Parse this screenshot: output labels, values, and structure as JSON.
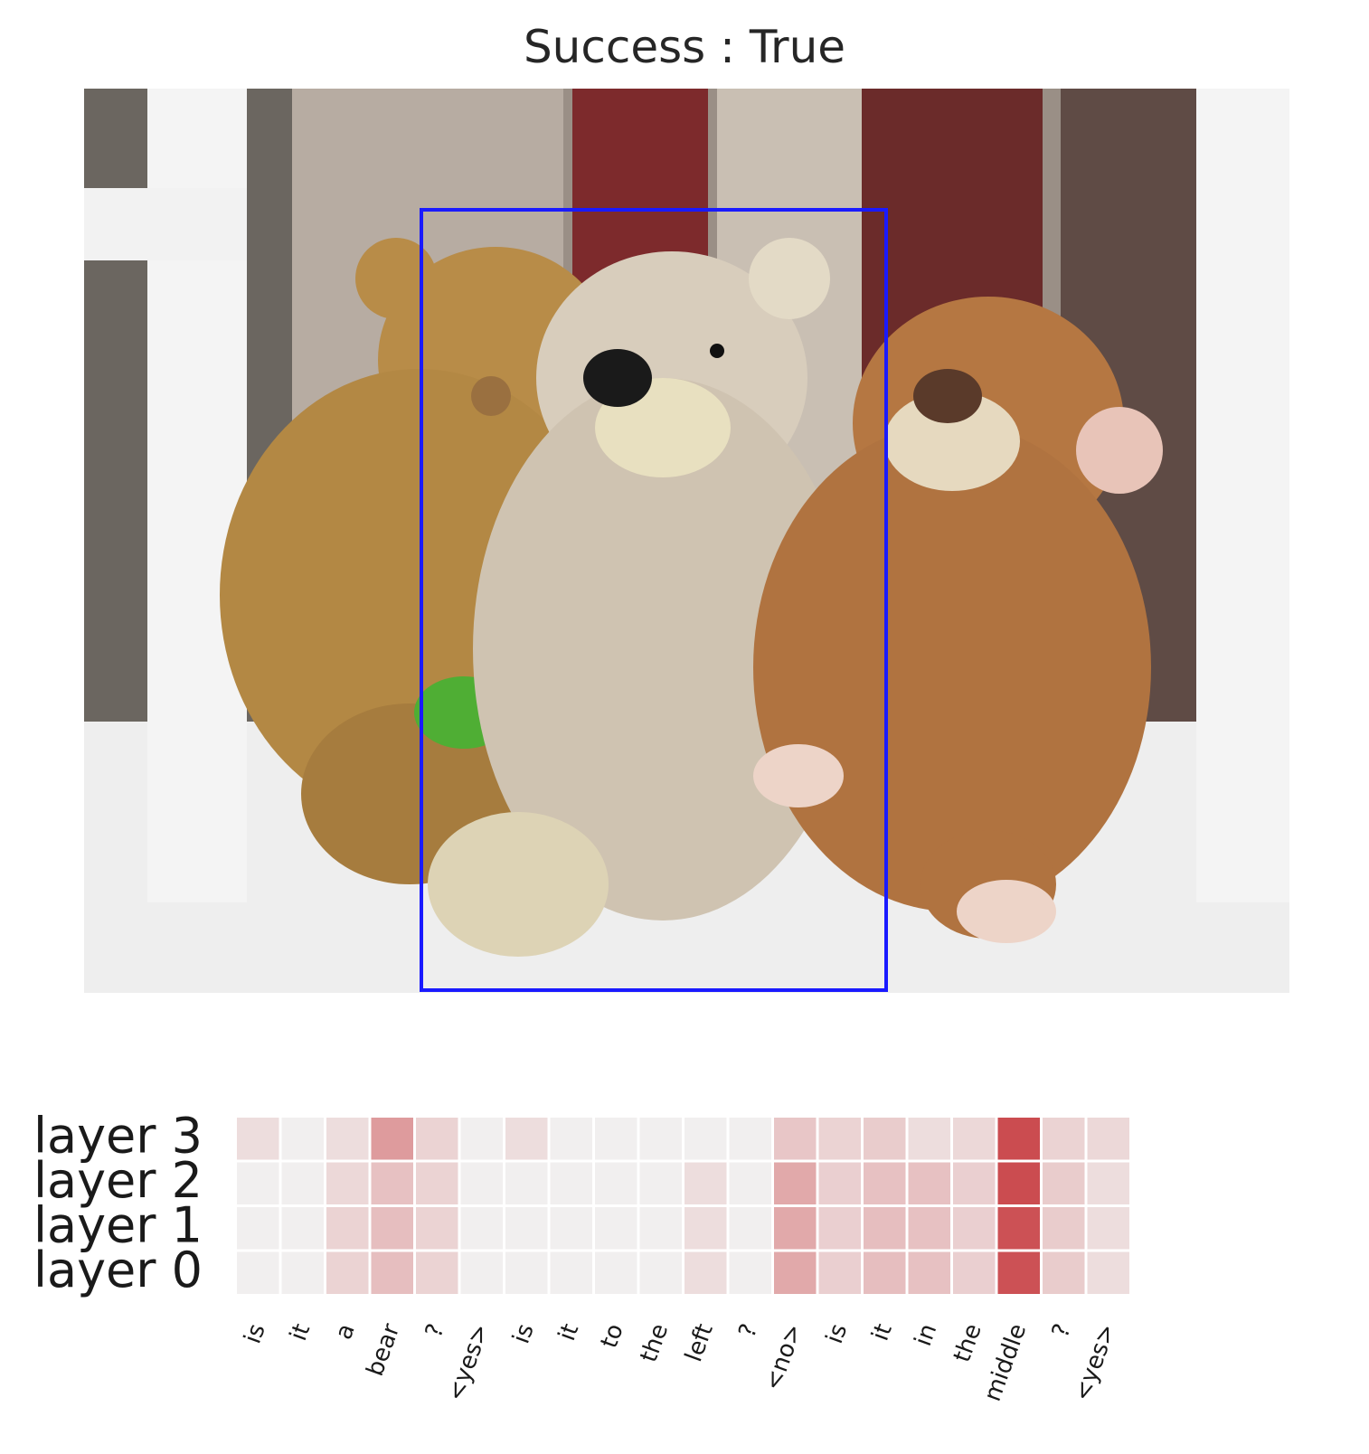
{
  "title": "Success : True",
  "image": {
    "description_icon": "photo-of-three-teddy-bears-on-a-bench",
    "bbox_color": "#1a1aff"
  },
  "chart_data": {
    "type": "heatmap",
    "rows": [
      "layer 3",
      "layer 2",
      "layer 1",
      "layer 0"
    ],
    "columns": [
      "is",
      "it",
      "a",
      "bear",
      "?",
      "<yes>",
      "is",
      "it",
      "to",
      "the",
      "left",
      "?",
      "<no>",
      "is",
      "it",
      "in",
      "the",
      "middle",
      "?",
      "<yes>"
    ],
    "values": [
      [
        0.12,
        0.02,
        0.12,
        0.5,
        0.18,
        0.02,
        0.12,
        0.02,
        0.02,
        0.02,
        0.02,
        0.02,
        0.25,
        0.18,
        0.22,
        0.12,
        0.15,
        0.95,
        0.18,
        0.15
      ],
      [
        0.02,
        0.02,
        0.15,
        0.28,
        0.18,
        0.02,
        0.02,
        0.02,
        0.02,
        0.02,
        0.12,
        0.02,
        0.42,
        0.2,
        0.28,
        0.28,
        0.2,
        0.95,
        0.22,
        0.12
      ],
      [
        0.02,
        0.02,
        0.18,
        0.3,
        0.18,
        0.02,
        0.02,
        0.02,
        0.02,
        0.02,
        0.12,
        0.02,
        0.42,
        0.2,
        0.3,
        0.28,
        0.2,
        0.92,
        0.22,
        0.12
      ],
      [
        0.02,
        0.02,
        0.18,
        0.3,
        0.18,
        0.02,
        0.02,
        0.02,
        0.02,
        0.02,
        0.12,
        0.02,
        0.42,
        0.2,
        0.3,
        0.28,
        0.2,
        0.92,
        0.22,
        0.12
      ]
    ],
    "color_low": "#f2f2f2",
    "color_high": "#c94347"
  }
}
